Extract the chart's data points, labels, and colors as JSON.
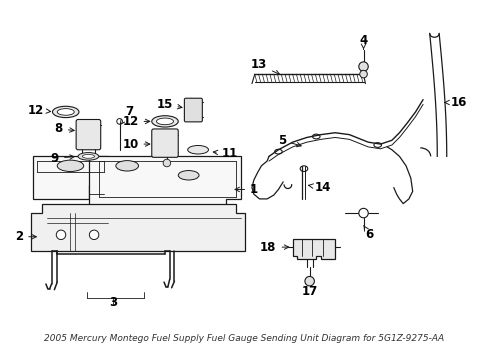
{
  "bg_color": "#ffffff",
  "line_color": "#1a1a1a",
  "label_color": "#000000",
  "label_fontsize": 8.5,
  "title": "2005 Mercury Montego Fuel Supply Fuel Gauge Sending Unit Diagram for 5G1Z-9275-AA",
  "title_fontsize": 6.5
}
